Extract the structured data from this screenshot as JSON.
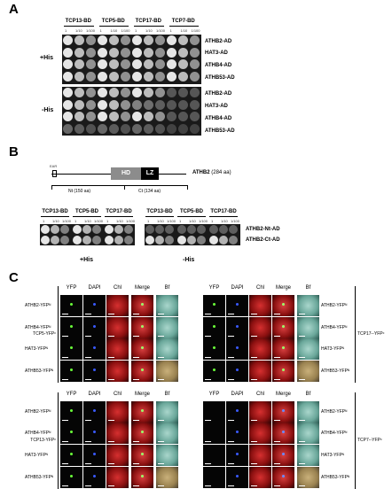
{
  "panel_a": {
    "letter": "A",
    "columns": [
      "TCP13-BD",
      "TCP5-BD",
      "TCP17-BD",
      "TCP7-BD"
    ],
    "dilutions": [
      "1",
      "1/10",
      "1/100"
    ],
    "rows": [
      "ATHB2-AD",
      "HAT3-AD",
      "ATHB4-AD",
      "ATHB53-AD"
    ],
    "conditions": [
      "+His",
      "-His"
    ]
  },
  "panel_b": {
    "letter": "B",
    "ear": "EAR",
    "hd": "HD",
    "lz": "LZ",
    "protein": "ATHB2",
    "length": "(284 aa)",
    "nt": "Nt (150 aa)",
    "ct": "Ct (134 aa)",
    "columns": [
      "TCP13-BD",
      "TCP5-BD",
      "TCP17-BD",
      "TCP13-BD",
      "TCP5-BD",
      "TCP17-BD"
    ],
    "dilutions": [
      "1",
      "1/10",
      "1/100"
    ],
    "rows": [
      "ATHB2-Nt-AD",
      "ATHB2-Ct-AD"
    ],
    "conditions": [
      "+His",
      "-His"
    ]
  },
  "panel_c": {
    "letter": "C",
    "channels": [
      "YFP",
      "DAPI",
      "Chl",
      "Merge",
      "Bf"
    ],
    "blocks": [
      {
        "side_label": "TCP5-YFPᶜ",
        "rows": [
          "ATHB2-YFPᴺ",
          "ATHB4-YFPᴺ",
          "HAT3-YFPᴺ",
          "ATHB53-YFPᴺ"
        ]
      },
      {
        "side_label": "TCP17--YFPᶜ",
        "rows": [
          "ATHB2-YFPᴺ",
          "ATHB4-YFPᴺ",
          "HAT3-YFPᴺ",
          "ATHB53-YFPᴺ"
        ]
      },
      {
        "side_label": "TCP13-YFPᶜ",
        "rows": [
          "ATHB2-YFPᴺ",
          "ATHB4-YFPᴺ",
          "HAT3-YFPᴺ",
          "ATHB53-YFPᴺ"
        ]
      },
      {
        "side_label": "TCP7--YFPᶜ",
        "rows": [
          "ATHB2-YFPᴺ",
          "ATHB4-YFPᴺ",
          "HAT3-YFPᴺ",
          "ATHB53-YFPᴺ"
        ]
      }
    ]
  }
}
